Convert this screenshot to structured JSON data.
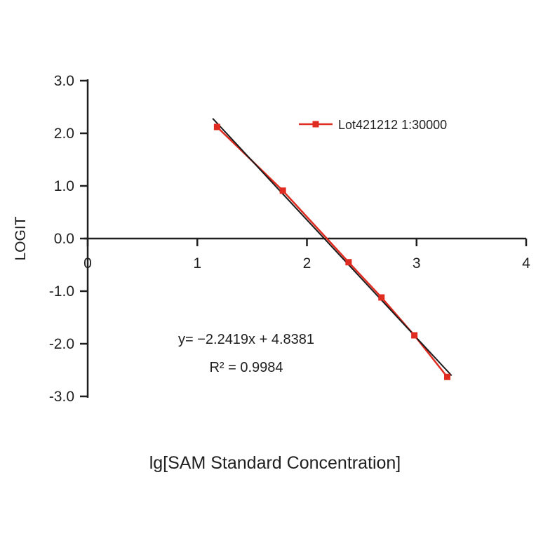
{
  "colors": {
    "background": "#ffffff",
    "axis": "#1f1f1f",
    "text": "#1f1f1f",
    "series": "#e02b20",
    "regression": "#1a1a1a"
  },
  "chart_data": {
    "type": "line",
    "title": "",
    "xlabel": "lg[SAM Standard Concentration]",
    "ylabel": "LOGIT",
    "xlim": [
      0,
      4
    ],
    "ylim": [
      -3.0,
      3.0
    ],
    "grid": "off",
    "x_ticks": [
      0,
      1,
      2,
      3,
      4
    ],
    "x_tick_labels": [
      "0",
      "1",
      "2",
      "3",
      "4"
    ],
    "y_ticks": [
      3.0,
      2.0,
      1.0,
      0.0,
      -1.0,
      -2.0,
      -3.0
    ],
    "y_tick_labels": [
      "3.0",
      "2.0",
      "1.0",
      "0.0",
      "-1.0",
      "-2.0",
      "-3.0"
    ],
    "series": [
      {
        "name": "Lot421212 1:30000",
        "color": "#e02b20",
        "marker": "square",
        "x": [
          1.18,
          1.78,
          2.38,
          2.68,
          2.98,
          3.28
        ],
        "y": [
          2.12,
          0.91,
          -0.45,
          -1.12,
          -1.84,
          -2.63
        ]
      }
    ],
    "regression": {
      "equation": "y= −2.2419x + 4.8381",
      "r_squared_label": "R² = 0.9984",
      "slope": -2.2419,
      "intercept": 4.8381,
      "color": "#1a1a1a",
      "x_range": [
        1.14,
        3.32
      ]
    },
    "legend": {
      "label": "Lot421212 1:30000",
      "position": "upper-right"
    }
  }
}
